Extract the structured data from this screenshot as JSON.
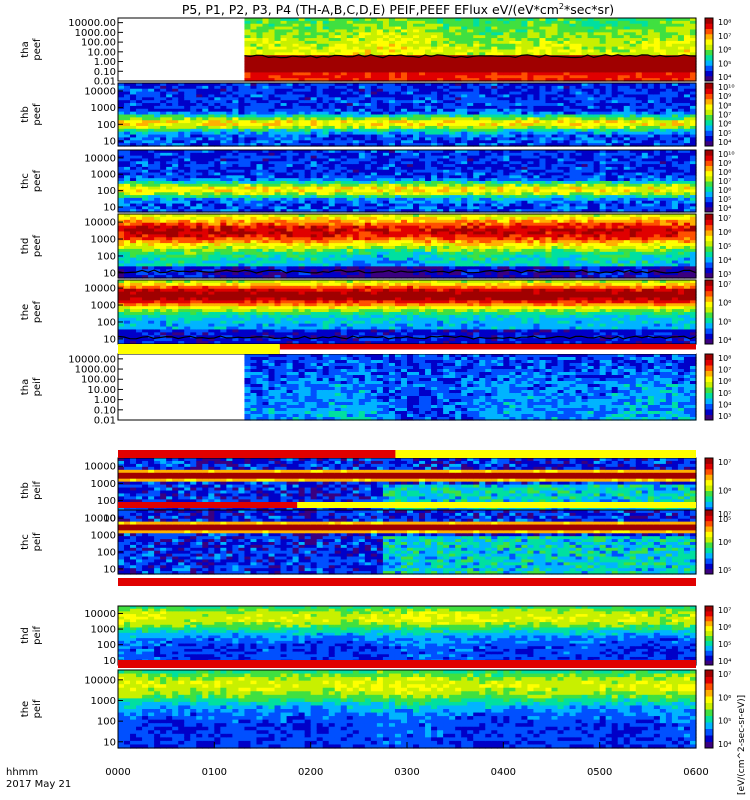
{
  "chart_data": {
    "type": "heatmap",
    "title": "P5, P1, P2, P3, P4 (TH-A,B,C,D,E) PEIF,PEEF EFlux eV/(eV*cm²*sec*sr)",
    "title_main": "P5, P1, P2, P3, P4 (TH-A,B,C,D,E) PEIF,PEEF EFlux eV/(eV*cm",
    "title_sup": "2",
    "title_tail": "*sec*sr)",
    "colorbar_unit": "[eV/(cm^2-sec-sr-eV)]",
    "x_axis": {
      "row_label": "hhmm",
      "date": "2017 May 21",
      "ticks": [
        "0000",
        "0100",
        "0200",
        "0300",
        "0400",
        "0500",
        "0600"
      ],
      "range_hours": [
        0,
        6
      ]
    },
    "y_scale": "log",
    "colormap": [
      "#3a0080",
      "#0000c8",
      "#0050ff",
      "#00b4ff",
      "#00e0a0",
      "#40e040",
      "#c8f000",
      "#ffff00",
      "#ffb000",
      "#ff5000",
      "#e00000",
      "#a00000"
    ],
    "panels": [
      {
        "probe": "tha",
        "product": "peef",
        "ylabel": [
          "tha",
          "peef"
        ],
        "yticks": [
          "10000.00",
          "1000.00",
          "100.00",
          "10.00",
          "1.00",
          "0.10",
          "0.01"
        ],
        "ylim": [
          0.01,
          30000
        ],
        "cbar_ticks": [
          "10⁸",
          "10⁷",
          "10⁶",
          "10⁵",
          "10⁴"
        ],
        "clim_exp": [
          4,
          8
        ],
        "data_start_hours": 1.3,
        "pattern": "peef_tha",
        "line_energy": 3.5
      },
      {
        "probe": "thb",
        "product": "peef",
        "ylabel": [
          "thb",
          "peef"
        ],
        "yticks": [
          "10000",
          "1000",
          "100",
          "10"
        ],
        "ylim": [
          5,
          30000
        ],
        "cbar_ticks": [
          "10¹⁰",
          "10⁹",
          "10⁸",
          "10⁷",
          "10⁶",
          "10⁵",
          "10⁴"
        ],
        "clim_exp": [
          4,
          10
        ],
        "data_start_hours": 0,
        "pattern": "peef_quiet"
      },
      {
        "probe": "thc",
        "product": "peef",
        "ylabel": [
          "thc",
          "peef"
        ],
        "yticks": [
          "10000",
          "1000",
          "100",
          "10"
        ],
        "ylim": [
          5,
          30000
        ],
        "cbar_ticks": [
          "10¹⁰",
          "10⁹",
          "10⁸",
          "10⁷",
          "10⁶",
          "10⁵",
          "10⁴"
        ],
        "clim_exp": [
          4,
          10
        ],
        "data_start_hours": 0,
        "pattern": "peef_quiet"
      },
      {
        "probe": "thd",
        "product": "peef",
        "ylabel": [
          "thd",
          "peef"
        ],
        "yticks": [
          "10000",
          "1000",
          "100",
          "10"
        ],
        "ylim": [
          5,
          30000
        ],
        "cbar_ticks": [
          "10⁷",
          "10⁶",
          "10⁵",
          "10⁴",
          "10³"
        ],
        "clim_exp": [
          3,
          7
        ],
        "data_start_hours": 0,
        "pattern": "peef_active",
        "line_energy": 12
      },
      {
        "probe": "the",
        "product": "peef",
        "ylabel": [
          "the",
          "peef"
        ],
        "yticks": [
          "10000",
          "1000",
          "100",
          "10"
        ],
        "ylim": [
          5,
          30000
        ],
        "cbar_ticks": [
          "10⁷",
          "10⁶",
          "10⁵",
          "10⁴"
        ],
        "clim_exp": [
          4,
          7
        ],
        "data_start_hours": 0,
        "pattern": "peef_active2",
        "line_energy": 12
      },
      {
        "probe": "tha",
        "product": "peif",
        "ylabel": [
          "tha",
          "peif"
        ],
        "yticks": [
          "10000.00",
          "1000.00",
          "100.00",
          "10.00",
          "1.00",
          "0.10",
          "0.01"
        ],
        "ylim": [
          0.01,
          30000
        ],
        "cbar_ticks": [
          "10⁸",
          "10⁷",
          "10⁶",
          "10⁵",
          "10⁴",
          "10³"
        ],
        "clim_exp": [
          3,
          8
        ],
        "data_start_hours": 1.3,
        "pattern": "peif_tha"
      },
      {
        "probe": "thb",
        "product": "peif",
        "ylabel": [
          "thb",
          "peif"
        ],
        "yticks": [
          "10000",
          "1000",
          "100",
          "10"
        ],
        "ylim": [
          5,
          30000
        ],
        "cbar_ticks": [
          "10⁷",
          "10⁶",
          "10⁵"
        ],
        "clim_exp": [
          5,
          7
        ],
        "data_start_hours": 0,
        "pattern": "peif_band"
      },
      {
        "probe": "thc",
        "product": "peif",
        "ylabel": [
          "thc",
          "peif"
        ],
        "yticks": [
          "10000",
          "1000",
          "100",
          "10"
        ],
        "ylim": [
          5,
          30000
        ],
        "cbar_ticks": [
          "10⁷",
          "10⁶",
          "10⁵"
        ],
        "clim_exp": [
          5,
          7
        ],
        "data_start_hours": 0,
        "pattern": "peif_band"
      },
      {
        "probe": "thd",
        "product": "peif",
        "ylabel": [
          "thd",
          "peif"
        ],
        "yticks": [
          "10000",
          "1000",
          "100",
          "10"
        ],
        "ylim": [
          5,
          30000
        ],
        "cbar_ticks": [
          "10⁷",
          "10⁶",
          "10⁵",
          "10⁴"
        ],
        "clim_exp": [
          4,
          7
        ],
        "data_start_hours": 0,
        "pattern": "peif_broad"
      },
      {
        "probe": "the",
        "product": "peif",
        "ylabel": [
          "the",
          "peif"
        ],
        "yticks": [
          "10000",
          "1000",
          "100",
          "10"
        ],
        "ylim": [
          5,
          30000
        ],
        "cbar_ticks": [
          "10⁷",
          "10⁶",
          "10⁵",
          "10⁴"
        ],
        "clim_exp": [
          4,
          7
        ],
        "data_start_hours": 0,
        "pattern": "peif_broad"
      }
    ]
  }
}
